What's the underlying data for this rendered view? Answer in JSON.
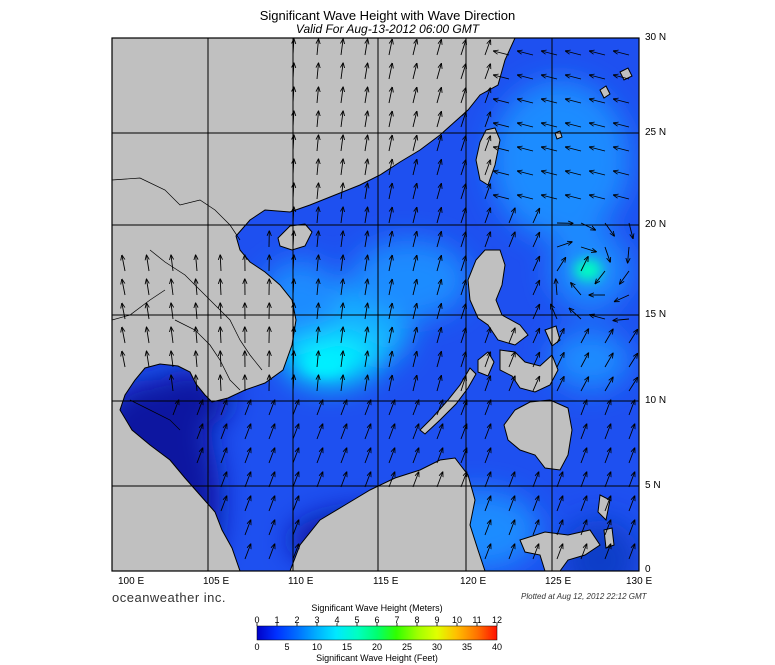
{
  "title": "Significant Wave Height with Wave Direction",
  "subtitle": "Valid For Aug-13-2012 06:00 GMT",
  "lon_labels": [
    "100 E",
    "105 E",
    "110 E",
    "115 E",
    "120 E",
    "125 E",
    "130 E"
  ],
  "lat_labels": [
    "30 N",
    "25 N",
    "20 N",
    "15 N",
    "10 N",
    "5 N",
    "0"
  ],
  "brand": "oceanweather inc.",
  "plotted": "Plotted at Aug 12, 2012 22:12 GMT",
  "legend": {
    "title_meters": "Significant Wave Height (Meters)",
    "title_feet": "Significant Wave Height (Feet)",
    "meter_ticks": [
      "0",
      "1",
      "2",
      "3",
      "4",
      "5",
      "6",
      "7",
      "8",
      "9",
      "10",
      "11",
      "12"
    ],
    "feet_ticks": [
      "0",
      "5",
      "10",
      "15",
      "20",
      "25",
      "30",
      "35",
      "40"
    ],
    "colors": [
      "#0000c8",
      "#0030ff",
      "#0070ff",
      "#00b0ff",
      "#00e8ff",
      "#00ffc0",
      "#00ff70",
      "#30ff00",
      "#a0ff00",
      "#e0ff00",
      "#ffc000",
      "#ff7000",
      "#ff1000"
    ]
  },
  "colors": {
    "land": "#c0c0c0",
    "sea_dark": "#0a14a0",
    "sea_mid": "#1e50f0",
    "sea_light": "#19b4ff",
    "sea_peak": "#00f0ff",
    "grid": "#000000"
  }
}
